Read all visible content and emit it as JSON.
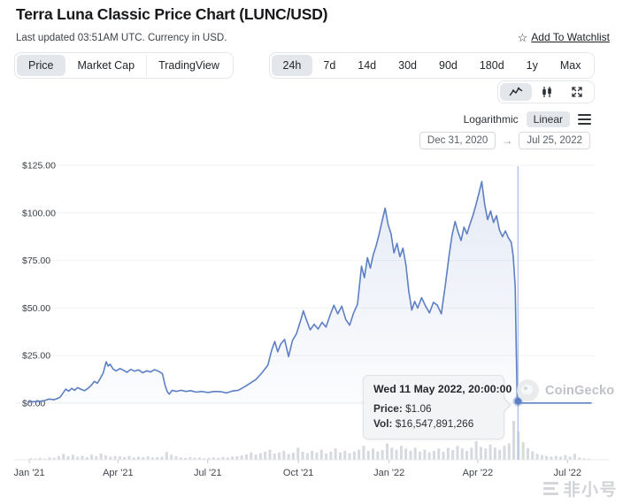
{
  "header": {
    "title": "Terra Luna Classic Price Chart (LUNC/USD)",
    "subtitle": "Last updated 03:51AM UTC. Currency in USD.",
    "watchlist_label": "Add To Watchlist"
  },
  "tabs": {
    "metric": [
      {
        "label": "Price",
        "selected": true
      },
      {
        "label": "Market Cap",
        "selected": false
      },
      {
        "label": "TradingView",
        "selected": false
      }
    ],
    "ranges": [
      {
        "label": "24h",
        "selected": true
      },
      {
        "label": "7d",
        "selected": false
      },
      {
        "label": "14d",
        "selected": false
      },
      {
        "label": "30d",
        "selected": false
      },
      {
        "label": "90d",
        "selected": false
      },
      {
        "label": "180d",
        "selected": false
      },
      {
        "label": "1y",
        "selected": false
      },
      {
        "label": "Max",
        "selected": false
      }
    ]
  },
  "toolbar": {
    "chart_type_icons": [
      "line-chart",
      "candlestick",
      "fullscreen"
    ],
    "scale": {
      "log_label": "Logarithmic",
      "linear_label": "Linear",
      "selected": "Linear"
    },
    "date_from": "Dec 31, 2020",
    "date_to": "Jul 25, 2022"
  },
  "tooltip": {
    "title": "Wed 11 May 2022, 20:00:00",
    "price_label": "Price:",
    "price_value": "$1.06",
    "vol_label": "Vol:",
    "vol_value": "$16,547,891,266"
  },
  "watermarks": {
    "brand": "CoinGecko",
    "site": "非小号"
  },
  "chart_data": {
    "type": "area",
    "title": "LUNC/USD price with volume",
    "x_domain": [
      "2020-12-31",
      "2022-07-25"
    ],
    "ylim": [
      0,
      125
    ],
    "grid": true,
    "line_color": "#5d7fc3",
    "fill_color_top": "rgba(93,127,195,0.16)",
    "fill_color_bottom": "rgba(93,127,195,0.02)",
    "volume_color": "#d6d9de",
    "crosshair_color": "#a9c4ea",
    "y_ticks": [
      {
        "value": 0,
        "label": "$0.00"
      },
      {
        "value": 25,
        "label": "$25.00"
      },
      {
        "value": 50,
        "label": "$50.00"
      },
      {
        "value": 75,
        "label": "$75.00"
      },
      {
        "value": 100,
        "label": "$100.00"
      },
      {
        "value": 125,
        "label": "$125.00"
      }
    ],
    "x_ticks": [
      {
        "date": "2021-01-01",
        "label": "Jan '21"
      },
      {
        "date": "2021-04-01",
        "label": "Apr '21"
      },
      {
        "date": "2021-07-01",
        "label": "Jul '21"
      },
      {
        "date": "2021-10-01",
        "label": "Oct '21"
      },
      {
        "date": "2022-01-01",
        "label": "Jan '22"
      },
      {
        "date": "2022-04-01",
        "label": "Apr '22"
      },
      {
        "date": "2022-07-01",
        "label": "Jul '22"
      }
    ],
    "crosshair": {
      "datetime": "2022-05-11T20:00:00Z",
      "price": 1.06
    },
    "points": [
      [
        "2020-12-31",
        0.65
      ],
      [
        "2021-01-08",
        0.9
      ],
      [
        "2021-01-15",
        1.1
      ],
      [
        "2021-01-21",
        2.2
      ],
      [
        "2021-01-26",
        1.8
      ],
      [
        "2021-02-01",
        3.0
      ],
      [
        "2021-02-04",
        5.2
      ],
      [
        "2021-02-07",
        7.4
      ],
      [
        "2021-02-10",
        6.3
      ],
      [
        "2021-02-13",
        7.8
      ],
      [
        "2021-02-16",
        6.8
      ],
      [
        "2021-02-19",
        8.2
      ],
      [
        "2021-02-23",
        7.2
      ],
      [
        "2021-02-26",
        6.6
      ],
      [
        "2021-03-02",
        8.0
      ],
      [
        "2021-03-05",
        9.5
      ],
      [
        "2021-03-08",
        11.5
      ],
      [
        "2021-03-11",
        10.5
      ],
      [
        "2021-03-14",
        13.0
      ],
      [
        "2021-03-17",
        16.0
      ],
      [
        "2021-03-20",
        21.8
      ],
      [
        "2021-03-22",
        19.5
      ],
      [
        "2021-03-24",
        20.5
      ],
      [
        "2021-03-27",
        18.0
      ],
      [
        "2021-03-30",
        17.0
      ],
      [
        "2021-04-03",
        18.2
      ],
      [
        "2021-04-07",
        17.2
      ],
      [
        "2021-04-10",
        16.2
      ],
      [
        "2021-04-14",
        17.8
      ],
      [
        "2021-04-18",
        16.8
      ],
      [
        "2021-04-22",
        17.5
      ],
      [
        "2021-04-26",
        16.0
      ],
      [
        "2021-04-30",
        17.0
      ],
      [
        "2021-05-04",
        16.4
      ],
      [
        "2021-05-08",
        17.6
      ],
      [
        "2021-05-12",
        16.8
      ],
      [
        "2021-05-16",
        15.5
      ],
      [
        "2021-05-19",
        9.0
      ],
      [
        "2021-05-21",
        6.0
      ],
      [
        "2021-05-23",
        4.8
      ],
      [
        "2021-05-26",
        6.8
      ],
      [
        "2021-05-30",
        6.2
      ],
      [
        "2021-06-04",
        6.8
      ],
      [
        "2021-06-09",
        6.2
      ],
      [
        "2021-06-14",
        6.6
      ],
      [
        "2021-06-19",
        5.8
      ],
      [
        "2021-06-25",
        6.2
      ],
      [
        "2021-07-01",
        5.6
      ],
      [
        "2021-07-08",
        6.2
      ],
      [
        "2021-07-15",
        6.0
      ],
      [
        "2021-07-20",
        5.4
      ],
      [
        "2021-07-26",
        6.4
      ],
      [
        "2021-08-01",
        6.8
      ],
      [
        "2021-08-07",
        8.5
      ],
      [
        "2021-08-13",
        10.5
      ],
      [
        "2021-08-19",
        12.5
      ],
      [
        "2021-08-25",
        16.0
      ],
      [
        "2021-08-31",
        20.0
      ],
      [
        "2021-09-04",
        28.0
      ],
      [
        "2021-09-07",
        32.5
      ],
      [
        "2021-09-10",
        27.0
      ],
      [
        "2021-09-13",
        31.0
      ],
      [
        "2021-09-17",
        33.5
      ],
      [
        "2021-09-21",
        24.5
      ],
      [
        "2021-09-25",
        33.0
      ],
      [
        "2021-09-29",
        36.5
      ],
      [
        "2021-10-03",
        43.0
      ],
      [
        "2021-10-06",
        48.5
      ],
      [
        "2021-10-09",
        44.0
      ],
      [
        "2021-10-13",
        38.5
      ],
      [
        "2021-10-17",
        41.5
      ],
      [
        "2021-10-21",
        39.0
      ],
      [
        "2021-10-25",
        42.5
      ],
      [
        "2021-10-29",
        40.0
      ],
      [
        "2021-11-02",
        46.0
      ],
      [
        "2021-11-06",
        51.5
      ],
      [
        "2021-11-10",
        47.0
      ],
      [
        "2021-11-14",
        51.0
      ],
      [
        "2021-11-18",
        44.0
      ],
      [
        "2021-11-22",
        41.0
      ],
      [
        "2021-11-26",
        47.5
      ],
      [
        "2021-11-30",
        52.0
      ],
      [
        "2021-12-04",
        72.0
      ],
      [
        "2021-12-07",
        66.0
      ],
      [
        "2021-12-10",
        76.5
      ],
      [
        "2021-12-13",
        71.0
      ],
      [
        "2021-12-16",
        78.0
      ],
      [
        "2021-12-19",
        83.0
      ],
      [
        "2021-12-22",
        89.0
      ],
      [
        "2021-12-25",
        96.0
      ],
      [
        "2021-12-28",
        102.5
      ],
      [
        "2021-12-31",
        94.0
      ],
      [
        "2022-01-03",
        89.0
      ],
      [
        "2022-01-06",
        79.0
      ],
      [
        "2022-01-09",
        84.0
      ],
      [
        "2022-01-12",
        77.0
      ],
      [
        "2022-01-15",
        81.5
      ],
      [
        "2022-01-18",
        73.0
      ],
      [
        "2022-01-21",
        59.0
      ],
      [
        "2022-01-24",
        49.0
      ],
      [
        "2022-01-27",
        53.5
      ],
      [
        "2022-01-30",
        50.0
      ],
      [
        "2022-02-03",
        55.5
      ],
      [
        "2022-02-07",
        51.0
      ],
      [
        "2022-02-11",
        47.5
      ],
      [
        "2022-02-15",
        53.0
      ],
      [
        "2022-02-19",
        51.5
      ],
      [
        "2022-02-23",
        47.0
      ],
      [
        "2022-02-27",
        62.0
      ],
      [
        "2022-03-03",
        78.0
      ],
      [
        "2022-03-06",
        88.5
      ],
      [
        "2022-03-09",
        95.5
      ],
      [
        "2022-03-12",
        90.0
      ],
      [
        "2022-03-15",
        85.5
      ],
      [
        "2022-03-18",
        92.5
      ],
      [
        "2022-03-21",
        89.0
      ],
      [
        "2022-03-24",
        94.0
      ],
      [
        "2022-03-27",
        98.5
      ],
      [
        "2022-03-30",
        104.0
      ],
      [
        "2022-04-02",
        110.0
      ],
      [
        "2022-04-05",
        116.5
      ],
      [
        "2022-04-08",
        104.5
      ],
      [
        "2022-04-11",
        96.5
      ],
      [
        "2022-04-14",
        101.0
      ],
      [
        "2022-04-17",
        95.0
      ],
      [
        "2022-04-20",
        98.5
      ],
      [
        "2022-04-23",
        91.0
      ],
      [
        "2022-04-26",
        87.5
      ],
      [
        "2022-04-29",
        90.5
      ],
      [
        "2022-05-02",
        87.0
      ],
      [
        "2022-05-05",
        84.5
      ],
      [
        "2022-05-07",
        77.0
      ],
      [
        "2022-05-09",
        61.0
      ],
      [
        "2022-05-10",
        30.0
      ],
      [
        "2022-05-11",
        1.06
      ],
      [
        "2022-05-13",
        0.15
      ],
      [
        "2022-05-20",
        0.1
      ],
      [
        "2022-06-01",
        0.1
      ],
      [
        "2022-06-15",
        0.1
      ],
      [
        "2022-07-01",
        0.1
      ],
      [
        "2022-07-15",
        0.1
      ],
      [
        "2022-07-25",
        0.1
      ]
    ],
    "volume_relative": [
      0.04,
      0.03,
      0.05,
      0.03,
      0.06,
      0.05,
      0.1,
      0.15,
      0.09,
      0.13,
      0.08,
      0.1,
      0.07,
      0.13,
      0.09,
      0.16,
      0.11,
      0.08,
      0.1,
      0.09,
      0.07,
      0.1,
      0.06,
      0.08,
      0.07,
      0.09,
      0.06,
      0.07,
      0.08,
      0.2,
      0.13,
      0.09,
      0.06,
      0.05,
      0.07,
      0.05,
      0.06,
      0.04,
      0.05,
      0.06,
      0.05,
      0.07,
      0.06,
      0.08,
      0.09,
      0.11,
      0.14,
      0.19,
      0.13,
      0.17,
      0.21,
      0.26,
      0.16,
      0.19,
      0.23,
      0.15,
      0.18,
      0.31,
      0.21,
      0.17,
      0.23,
      0.19,
      0.26,
      0.16,
      0.21,
      0.29,
      0.19,
      0.23,
      0.17,
      0.21,
      0.26,
      0.36,
      0.23,
      0.29,
      0.21,
      0.25,
      0.42,
      0.31,
      0.26,
      0.36,
      0.29,
      0.23,
      0.31,
      0.21,
      0.26,
      0.19,
      0.23,
      0.29,
      0.21,
      0.31,
      0.25,
      0.36,
      0.29,
      0.23,
      0.31,
      0.47,
      0.33,
      0.29,
      0.39,
      0.31,
      0.26,
      0.36,
      0.42,
      1.0,
      0.72,
      0.45,
      0.3,
      0.22,
      0.15,
      0.12,
      0.1,
      0.08,
      0.1,
      0.08,
      0.12,
      0.08,
      0.15,
      0.06,
      0.04,
      0.03
    ]
  }
}
